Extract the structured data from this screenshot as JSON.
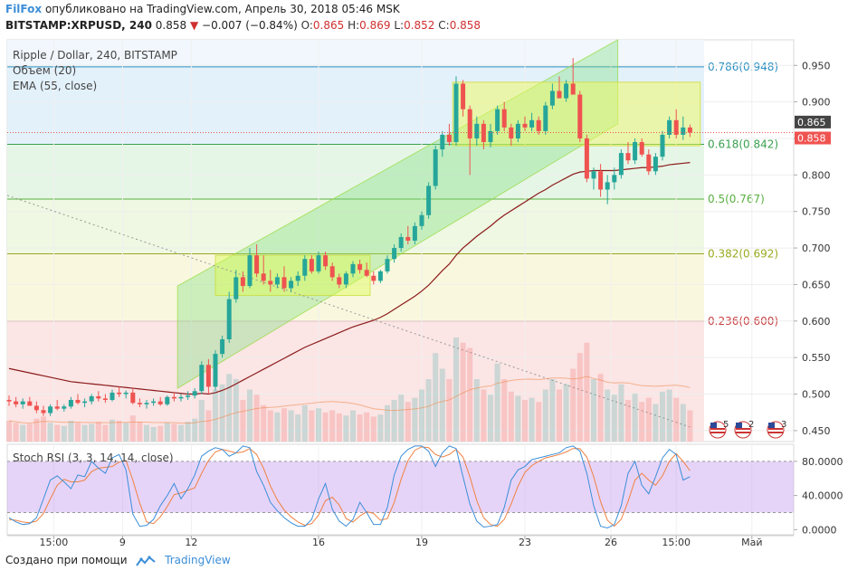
{
  "header": {
    "brand": "FilFox",
    "published": "опубликовано на TradingView.com, Апрель 30, 2018 05:46 MSK",
    "symbol": "BITSTAMP:XRPUSD, 240",
    "last": "0.858",
    "change": "−0.007 (−0.84%)",
    "o_label": "O:",
    "o": "0.865",
    "h_label": "H:",
    "h": "0.869",
    "l_label": "L:",
    "l": "0.852",
    "c_label": "C:",
    "c": "0.858",
    "colors": {
      "up": "#26a69a",
      "down": "#ef5350",
      "brand": "#3b8ed8"
    }
  },
  "legend": {
    "title": "Ripple / Dollar, 240, BITSTAMP",
    "volume": "Объем (20)",
    "ema": "EMA (55, close)",
    "stoch": "Stoch RSI (3, 3, 14, 14, close)"
  },
  "footer": {
    "created": "Создано при помощи",
    "brand": "TradingView"
  },
  "chart_data": {
    "type": "candlestick",
    "price_axis": {
      "ticks": [
        0.45,
        0.5,
        0.55,
        0.6,
        0.65,
        0.7,
        0.75,
        0.8,
        0.85,
        0.9,
        0.95
      ],
      "range": [
        0.435,
        0.985
      ]
    },
    "price_badges": [
      {
        "value": "0.865",
        "color": "#444444"
      },
      {
        "value": "0.858",
        "color": "#ef5350"
      }
    ],
    "stoch_axis": {
      "ticks": [
        "80.0000",
        "40.0000",
        "0.0000"
      ],
      "values": [
        80,
        40,
        0
      ],
      "range": [
        -6,
        100
      ],
      "band": [
        20,
        80
      ]
    },
    "x_labels": [
      "15:00",
      "9",
      "12",
      "16",
      "19",
      "23",
      "26",
      "15:00",
      "Май"
    ],
    "x_label_positions": [
      6.5,
      16.5,
      26.5,
      45,
      60,
      75,
      87.5,
      97,
      108
    ],
    "fib_levels": [
      {
        "label": "0.786(0.948)",
        "value": 0.948,
        "color": "#2a8fc0",
        "fill": "#e3f1fb"
      },
      {
        "label": "0.618(0.842)",
        "value": 0.842,
        "color": "#3aa050",
        "fill": "#e6f6e6"
      },
      {
        "label": "0.5(0.767)",
        "value": 0.767,
        "color": "#58b040",
        "fill": "#eef8e2"
      },
      {
        "label": "0.382(0.692)",
        "value": 0.692,
        "color": "#9aaa20",
        "fill": "#f9f8de"
      },
      {
        "label": "0.236(0.600)",
        "value": 0.6,
        "color": "#c84040",
        "fill": "#fbe5e5"
      }
    ],
    "candles": [
      [
        0.492,
        0.498,
        0.484,
        0.49
      ],
      [
        0.49,
        0.496,
        0.482,
        0.486
      ],
      [
        0.486,
        0.494,
        0.48,
        0.49
      ],
      [
        0.49,
        0.496,
        0.484,
        0.484
      ],
      [
        0.484,
        0.49,
        0.474,
        0.478
      ],
      [
        0.478,
        0.484,
        0.47,
        0.474
      ],
      [
        0.474,
        0.486,
        0.47,
        0.483
      ],
      [
        0.483,
        0.492,
        0.478,
        0.48
      ],
      [
        0.48,
        0.486,
        0.476,
        0.483
      ],
      [
        0.483,
        0.496,
        0.48,
        0.492
      ],
      [
        0.492,
        0.5,
        0.486,
        0.488
      ],
      [
        0.488,
        0.494,
        0.482,
        0.49
      ],
      [
        0.49,
        0.5,
        0.486,
        0.497
      ],
      [
        0.497,
        0.504,
        0.49,
        0.494
      ],
      [
        0.494,
        0.5,
        0.488,
        0.492
      ],
      [
        0.492,
        0.506,
        0.49,
        0.502
      ],
      [
        0.502,
        0.51,
        0.496,
        0.5
      ],
      [
        0.5,
        0.505,
        0.494,
        0.502
      ],
      [
        0.502,
        0.508,
        0.486,
        0.488
      ],
      [
        0.488,
        0.494,
        0.482,
        0.486
      ],
      [
        0.486,
        0.492,
        0.48,
        0.488
      ],
      [
        0.488,
        0.494,
        0.484,
        0.49
      ],
      [
        0.49,
        0.496,
        0.484,
        0.486
      ],
      [
        0.486,
        0.498,
        0.484,
        0.496
      ],
      [
        0.496,
        0.502,
        0.49,
        0.494
      ],
      [
        0.494,
        0.5,
        0.49,
        0.496
      ],
      [
        0.496,
        0.504,
        0.492,
        0.498
      ],
      [
        0.498,
        0.508,
        0.494,
        0.504
      ],
      [
        0.504,
        0.545,
        0.5,
        0.54
      ],
      [
        0.54,
        0.548,
        0.5,
        0.51
      ],
      [
        0.51,
        0.56,
        0.505,
        0.555
      ],
      [
        0.555,
        0.58,
        0.55,
        0.575
      ],
      [
        0.575,
        0.64,
        0.57,
        0.63
      ],
      [
        0.63,
        0.67,
        0.625,
        0.66
      ],
      [
        0.66,
        0.668,
        0.64,
        0.648
      ],
      [
        0.648,
        0.7,
        0.645,
        0.69
      ],
      [
        0.69,
        0.705,
        0.66,
        0.665
      ],
      [
        0.665,
        0.69,
        0.65,
        0.655
      ],
      [
        0.655,
        0.67,
        0.64,
        0.65
      ],
      [
        0.65,
        0.665,
        0.645,
        0.66
      ],
      [
        0.66,
        0.675,
        0.64,
        0.645
      ],
      [
        0.645,
        0.66,
        0.64,
        0.655
      ],
      [
        0.655,
        0.668,
        0.648,
        0.662
      ],
      [
        0.662,
        0.69,
        0.655,
        0.685
      ],
      [
        0.685,
        0.69,
        0.665,
        0.668
      ],
      [
        0.668,
        0.695,
        0.665,
        0.69
      ],
      [
        0.69,
        0.695,
        0.67,
        0.675
      ],
      [
        0.675,
        0.68,
        0.655,
        0.66
      ],
      [
        0.66,
        0.665,
        0.645,
        0.65
      ],
      [
        0.65,
        0.668,
        0.645,
        0.665
      ],
      [
        0.665,
        0.682,
        0.66,
        0.678
      ],
      [
        0.678,
        0.684,
        0.665,
        0.67
      ],
      [
        0.67,
        0.68,
        0.66,
        0.662
      ],
      [
        0.662,
        0.668,
        0.65,
        0.655
      ],
      [
        0.655,
        0.67,
        0.652,
        0.668
      ],
      [
        0.668,
        0.69,
        0.665,
        0.685
      ],
      [
        0.685,
        0.705,
        0.68,
        0.7
      ],
      [
        0.7,
        0.72,
        0.695,
        0.715
      ],
      [
        0.715,
        0.73,
        0.705,
        0.71
      ],
      [
        0.71,
        0.735,
        0.705,
        0.73
      ],
      [
        0.73,
        0.75,
        0.725,
        0.745
      ],
      [
        0.745,
        0.79,
        0.74,
        0.785
      ],
      [
        0.785,
        0.84,
        0.78,
        0.835
      ],
      [
        0.835,
        0.86,
        0.825,
        0.855
      ],
      [
        0.855,
        0.87,
        0.84,
        0.845
      ],
      [
        0.845,
        0.935,
        0.84,
        0.925
      ],
      [
        0.925,
        0.93,
        0.88,
        0.89
      ],
      [
        0.89,
        0.895,
        0.8,
        0.85
      ],
      [
        0.85,
        0.88,
        0.84,
        0.87
      ],
      [
        0.87,
        0.875,
        0.835,
        0.845
      ],
      [
        0.845,
        0.87,
        0.838,
        0.86
      ],
      [
        0.86,
        0.895,
        0.855,
        0.89
      ],
      [
        0.89,
        0.9,
        0.86,
        0.865
      ],
      [
        0.865,
        0.87,
        0.84,
        0.85
      ],
      [
        0.85,
        0.875,
        0.845,
        0.87
      ],
      [
        0.87,
        0.88,
        0.86,
        0.865
      ],
      [
        0.865,
        0.885,
        0.86,
        0.875
      ],
      [
        0.875,
        0.88,
        0.855,
        0.86
      ],
      [
        0.86,
        0.9,
        0.855,
        0.895
      ],
      [
        0.895,
        0.925,
        0.89,
        0.915
      ],
      [
        0.915,
        0.935,
        0.905,
        0.905
      ],
      [
        0.905,
        0.93,
        0.9,
        0.925
      ],
      [
        0.925,
        0.96,
        0.91,
        0.91
      ],
      [
        0.91,
        0.915,
        0.845,
        0.85
      ],
      [
        0.85,
        0.855,
        0.79,
        0.795
      ],
      [
        0.795,
        0.81,
        0.78,
        0.805
      ],
      [
        0.805,
        0.815,
        0.77,
        0.78
      ],
      [
        0.78,
        0.8,
        0.76,
        0.79
      ],
      [
        0.79,
        0.81,
        0.78,
        0.8
      ],
      [
        0.8,
        0.835,
        0.795,
        0.83
      ],
      [
        0.83,
        0.845,
        0.815,
        0.82
      ],
      [
        0.82,
        0.85,
        0.815,
        0.845
      ],
      [
        0.845,
        0.85,
        0.825,
        0.828
      ],
      [
        0.828,
        0.835,
        0.8,
        0.805
      ],
      [
        0.805,
        0.83,
        0.8,
        0.825
      ],
      [
        0.825,
        0.86,
        0.82,
        0.855
      ],
      [
        0.855,
        0.88,
        0.85,
        0.875
      ],
      [
        0.875,
        0.89,
        0.85,
        0.855
      ],
      [
        0.855,
        0.88,
        0.848,
        0.865
      ],
      [
        0.865,
        0.869,
        0.852,
        0.858
      ]
    ],
    "volumes": [
      0.02,
      0.018,
      0.016,
      0.017,
      0.022,
      0.024,
      0.018,
      0.016,
      0.015,
      0.02,
      0.018,
      0.016,
      0.017,
      0.019,
      0.016,
      0.021,
      0.02,
      0.018,
      0.025,
      0.019,
      0.016,
      0.014,
      0.015,
      0.018,
      0.017,
      0.016,
      0.019,
      0.022,
      0.04,
      0.03,
      0.05,
      0.055,
      0.065,
      0.06,
      0.04,
      0.05,
      0.045,
      0.035,
      0.03,
      0.028,
      0.032,
      0.03,
      0.026,
      0.035,
      0.03,
      0.032,
      0.028,
      0.03,
      0.027,
      0.025,
      0.03,
      0.026,
      0.028,
      0.024,
      0.026,
      0.035,
      0.04,
      0.045,
      0.038,
      0.042,
      0.05,
      0.06,
      0.085,
      0.07,
      0.06,
      0.1,
      0.095,
      0.09,
      0.06,
      0.05,
      0.045,
      0.075,
      0.06,
      0.048,
      0.044,
      0.04,
      0.042,
      0.038,
      0.05,
      0.06,
      0.05,
      0.055,
      0.07,
      0.085,
      0.095,
      0.06,
      0.065,
      0.05,
      0.045,
      0.055,
      0.04,
      0.046,
      0.038,
      0.042,
      0.036,
      0.048,
      0.05,
      0.042,
      0.036,
      0.03
    ],
    "ema55": [
      0.535,
      0.533,
      0.531,
      0.529,
      0.527,
      0.525,
      0.523,
      0.521,
      0.519,
      0.517,
      0.516,
      0.515,
      0.514,
      0.513,
      0.512,
      0.511,
      0.51,
      0.509,
      0.508,
      0.507,
      0.506,
      0.505,
      0.504,
      0.503,
      0.502,
      0.501,
      0.5,
      0.5,
      0.501,
      0.5,
      0.502,
      0.505,
      0.509,
      0.514,
      0.519,
      0.524,
      0.529,
      0.534,
      0.539,
      0.544,
      0.549,
      0.554,
      0.559,
      0.564,
      0.568,
      0.572,
      0.576,
      0.58,
      0.584,
      0.588,
      0.592,
      0.595,
      0.598,
      0.601,
      0.605,
      0.61,
      0.616,
      0.622,
      0.628,
      0.634,
      0.641,
      0.649,
      0.659,
      0.669,
      0.678,
      0.69,
      0.7,
      0.708,
      0.716,
      0.723,
      0.73,
      0.738,
      0.745,
      0.751,
      0.757,
      0.763,
      0.769,
      0.775,
      0.78,
      0.786,
      0.791,
      0.796,
      0.801,
      0.804,
      0.805,
      0.806,
      0.806,
      0.806,
      0.806,
      0.807,
      0.808,
      0.809,
      0.81,
      0.81,
      0.811,
      0.812,
      0.814,
      0.815,
      0.816,
      0.817
    ],
    "stoch_k": [
      14,
      9,
      6,
      7,
      14,
      36,
      58,
      63,
      56,
      48,
      64,
      62,
      80,
      72,
      66,
      84,
      88,
      70,
      18,
      4,
      5,
      12,
      28,
      40,
      54,
      36,
      48,
      64,
      86,
      92,
      96,
      94,
      86,
      90,
      98,
      96,
      68,
      52,
      32,
      22,
      14,
      8,
      4,
      4,
      12,
      36,
      54,
      24,
      10,
      4,
      12,
      32,
      20,
      6,
      6,
      26,
      64,
      86,
      94,
      98,
      98,
      92,
      74,
      90,
      98,
      95,
      62,
      30,
      10,
      3,
      4,
      6,
      26,
      58,
      70,
      74,
      82,
      84,
      86,
      88,
      90,
      96,
      98,
      92,
      66,
      28,
      4,
      2,
      6,
      28,
      66,
      80,
      52,
      42,
      62,
      84,
      94,
      88,
      58,
      62
    ],
    "stoch_d": [
      12,
      11,
      9,
      8,
      10,
      19,
      36,
      52,
      59,
      56,
      56,
      58,
      68,
      72,
      73,
      74,
      79,
      81,
      58,
      31,
      9,
      7,
      15,
      27,
      41,
      43,
      46,
      49,
      66,
      81,
      91,
      94,
      92,
      90,
      91,
      95,
      88,
      72,
      51,
      35,
      23,
      15,
      9,
      5,
      7,
      17,
      34,
      38,
      29,
      13,
      9,
      16,
      21,
      19,
      11,
      13,
      32,
      59,
      81,
      93,
      97,
      96,
      88,
      85,
      88,
      94,
      85,
      62,
      34,
      14,
      6,
      4,
      12,
      30,
      51,
      67,
      75,
      80,
      84,
      86,
      88,
      91,
      95,
      95,
      85,
      62,
      33,
      11,
      4,
      12,
      33,
      58,
      66,
      58,
      52,
      63,
      80,
      89,
      80,
      69
    ]
  }
}
